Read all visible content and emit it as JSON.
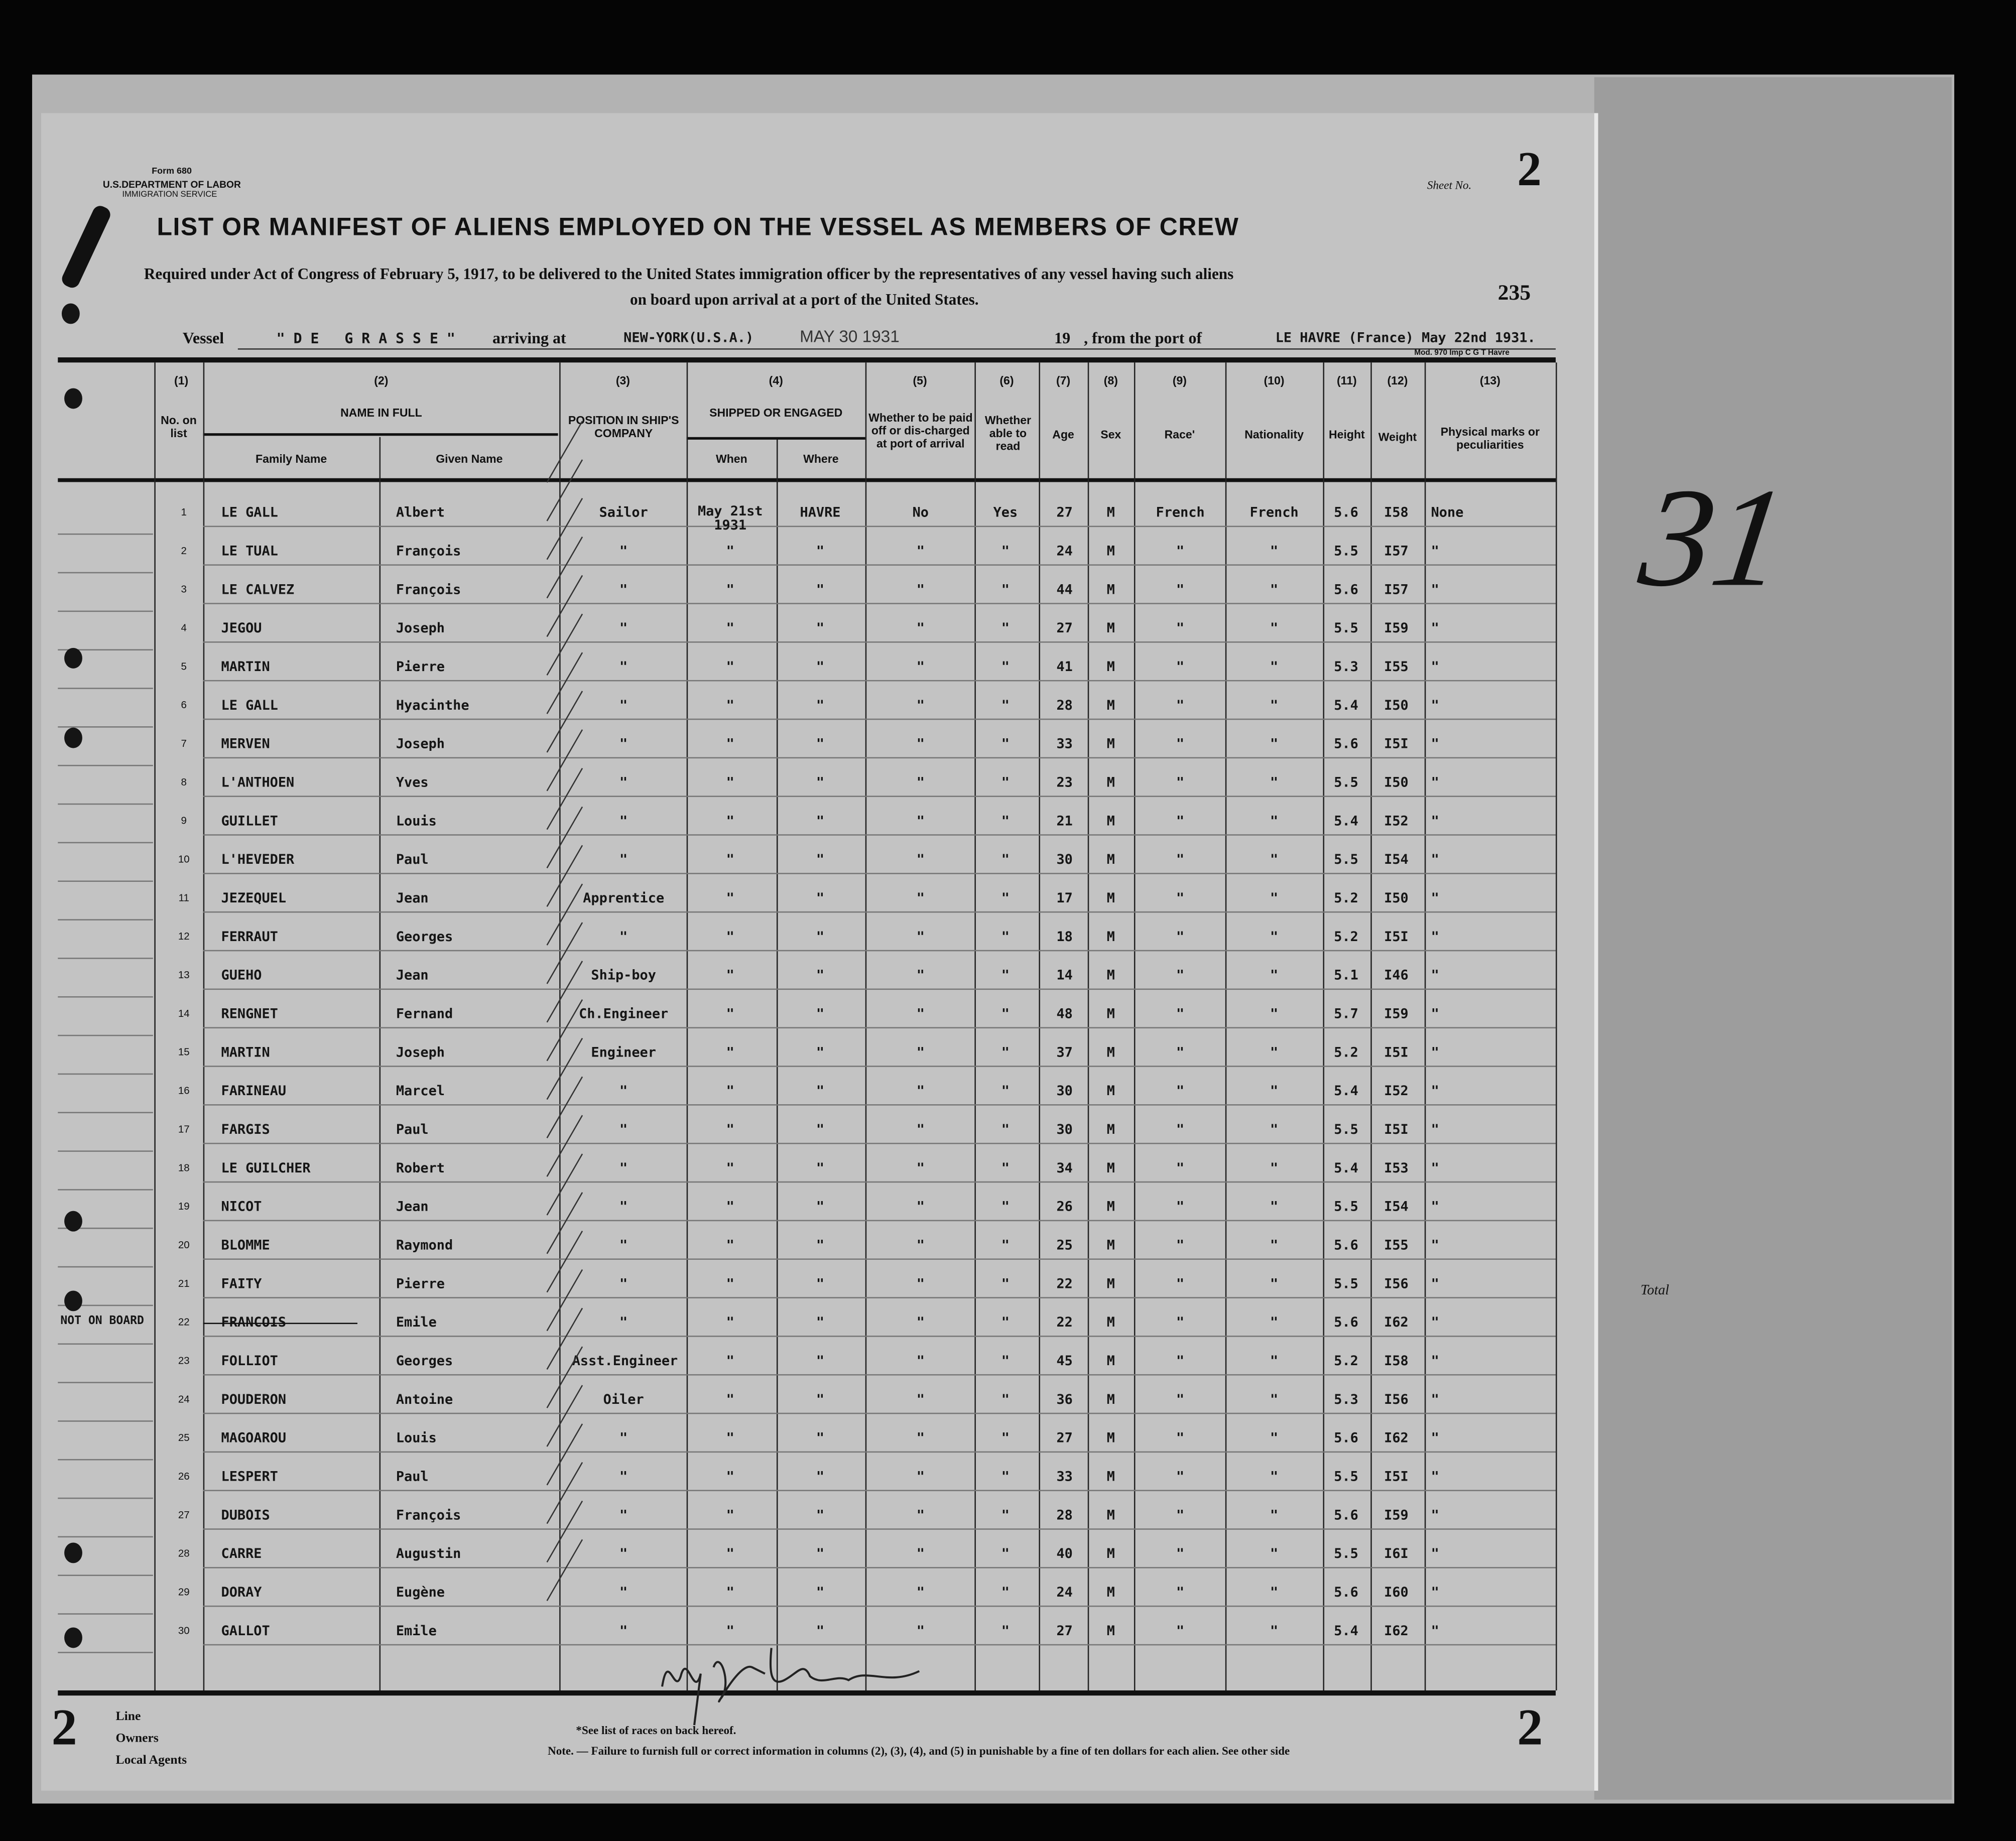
{
  "form": {
    "form_no": "Form 680",
    "department": "U.S.DEPARTMENT OF LABOR",
    "service": "IMMIGRATION SERVICE",
    "sheet_label": "Sheet No.",
    "sheet_no": "2",
    "page_number": "235",
    "mod": "Mod. 970 Imp C G T Havre"
  },
  "title": "LIST OR MANIFEST OF ALIENS EMPLOYED ON THE VESSEL AS MEMBERS OF CREW",
  "subtitle_1": "Required under Act of Congress of February 5, 1917, to be delivered to the United States immigration officer by the representatives of any vessel having such aliens",
  "subtitle_2": "on board upon arrival at a port of the United States.",
  "voyage": {
    "vessel_label": "Vessel",
    "vessel": "\" D E   G R A S S E \"",
    "arriving_label": "arriving at",
    "arriving": "NEW-YORK(U.S.A.)",
    "stamp_date": "MAY 30 1931",
    "year_label": "19",
    "from_label": ", from the port of",
    "from": "LE HAVRE (France) May 22nd 1931."
  },
  "headers": {
    "c1": "(1)",
    "c2": "(2)",
    "c3": "(3)",
    "c4": "(4)",
    "c5": "(5)",
    "c6": "(6)",
    "c7": "(7)",
    "c8": "(8)",
    "c9": "(9)",
    "c10": "(10)",
    "c11": "(11)",
    "c12": "(12)",
    "c13": "(13)",
    "no": "No. on list",
    "name_full": "NAME IN FULL",
    "family": "Family Name",
    "given": "Given Name",
    "position": "POSITION IN SHIP'S COMPANY",
    "shipped": "SHIPPED OR ENGAGED",
    "when": "When",
    "where": "Where",
    "paid": "Whether to be paid off or dis-charged at port of arrival",
    "read": "Whether able to read",
    "age": "Age",
    "sex": "Sex",
    "race": "Race'",
    "nationality": "Nationality",
    "height": "Height",
    "weight": "Weight",
    "marks": "Physical marks or peculiarities"
  },
  "rows": [
    {
      "no": "1",
      "family": "LE GALL",
      "given": "Albert",
      "position": "Sailor",
      "when": "May 21st 1931",
      "where": "HAVRE",
      "paid": "No",
      "read": "Yes",
      "age": "27",
      "sex": "M",
      "race": "French",
      "nationality": "French",
      "height": "5.6",
      "weight": "I58",
      "marks": "None"
    },
    {
      "no": "2",
      "family": "LE TUAL",
      "given": "François",
      "position": "\"",
      "when": "\"",
      "where": "\"",
      "paid": "\"",
      "read": "\"",
      "age": "24",
      "sex": "M",
      "race": "\"",
      "nationality": "\"",
      "height": "5.5",
      "weight": "I57",
      "marks": "\""
    },
    {
      "no": "3",
      "family": "LE CALVEZ",
      "given": "François",
      "position": "\"",
      "when": "\"",
      "where": "\"",
      "paid": "\"",
      "read": "\"",
      "age": "44",
      "sex": "M",
      "race": "\"",
      "nationality": "\"",
      "height": "5.6",
      "weight": "I57",
      "marks": "\""
    },
    {
      "no": "4",
      "family": "JEGOU",
      "given": "Joseph",
      "position": "\"",
      "when": "\"",
      "where": "\"",
      "paid": "\"",
      "read": "\"",
      "age": "27",
      "sex": "M",
      "race": "\"",
      "nationality": "\"",
      "height": "5.5",
      "weight": "I59",
      "marks": "\""
    },
    {
      "no": "5",
      "family": "MARTIN",
      "given": "Pierre",
      "position": "\"",
      "when": "\"",
      "where": "\"",
      "paid": "\"",
      "read": "\"",
      "age": "41",
      "sex": "M",
      "race": "\"",
      "nationality": "\"",
      "height": "5.3",
      "weight": "I55",
      "marks": "\""
    },
    {
      "no": "6",
      "family": "LE GALL",
      "given": "Hyacinthe",
      "position": "\"",
      "when": "\"",
      "where": "\"",
      "paid": "\"",
      "read": "\"",
      "age": "28",
      "sex": "M",
      "race": "\"",
      "nationality": "\"",
      "height": "5.4",
      "weight": "I50",
      "marks": "\""
    },
    {
      "no": "7",
      "family": "MERVEN",
      "given": "Joseph",
      "position": "\"",
      "when": "\"",
      "where": "\"",
      "paid": "\"",
      "read": "\"",
      "age": "33",
      "sex": "M",
      "race": "\"",
      "nationality": "\"",
      "height": "5.6",
      "weight": "I5I",
      "marks": "\""
    },
    {
      "no": "8",
      "family": "L'ANTHOEN",
      "given": "Yves",
      "position": "\"",
      "when": "\"",
      "where": "\"",
      "paid": "\"",
      "read": "\"",
      "age": "23",
      "sex": "M",
      "race": "\"",
      "nationality": "\"",
      "height": "5.5",
      "weight": "I50",
      "marks": "\""
    },
    {
      "no": "9",
      "family": "GUILLET",
      "given": "Louis",
      "position": "\"",
      "when": "\"",
      "where": "\"",
      "paid": "\"",
      "read": "\"",
      "age": "21",
      "sex": "M",
      "race": "\"",
      "nationality": "\"",
      "height": "5.4",
      "weight": "I52",
      "marks": "\""
    },
    {
      "no": "10",
      "family": "L'HEVEDER",
      "given": "Paul",
      "position": "\"",
      "when": "\"",
      "where": "\"",
      "paid": "\"",
      "read": "\"",
      "age": "30",
      "sex": "M",
      "race": "\"",
      "nationality": "\"",
      "height": "5.5",
      "weight": "I54",
      "marks": "\""
    },
    {
      "no": "11",
      "family": "JEZEQUEL",
      "given": "Jean",
      "position": "Apprentice",
      "when": "\"",
      "where": "\"",
      "paid": "\"",
      "read": "\"",
      "age": "17",
      "sex": "M",
      "race": "\"",
      "nationality": "\"",
      "height": "5.2",
      "weight": "I50",
      "marks": "\""
    },
    {
      "no": "12",
      "family": "FERRAUT",
      "given": "Georges",
      "position": "\"",
      "when": "\"",
      "where": "\"",
      "paid": "\"",
      "read": "\"",
      "age": "18",
      "sex": "M",
      "race": "\"",
      "nationality": "\"",
      "height": "5.2",
      "weight": "I5I",
      "marks": "\""
    },
    {
      "no": "13",
      "family": "GUEHO",
      "given": "Jean",
      "position": "Ship-boy",
      "when": "\"",
      "where": "\"",
      "paid": "\"",
      "read": "\"",
      "age": "14",
      "sex": "M",
      "race": "\"",
      "nationality": "\"",
      "height": "5.1",
      "weight": "I46",
      "marks": "\""
    },
    {
      "no": "14",
      "family": "RENGNET",
      "given": "Fernand",
      "position": "Ch.Engineer",
      "when": "\"",
      "where": "\"",
      "paid": "\"",
      "read": "\"",
      "age": "48",
      "sex": "M",
      "race": "\"",
      "nationality": "\"",
      "height": "5.7",
      "weight": "I59",
      "marks": "\""
    },
    {
      "no": "15",
      "family": "MARTIN",
      "given": "Joseph",
      "position": "Engineer",
      "when": "\"",
      "where": "\"",
      "paid": "\"",
      "read": "\"",
      "age": "37",
      "sex": "M",
      "race": "\"",
      "nationality": "\"",
      "height": "5.2",
      "weight": "I5I",
      "marks": "\""
    },
    {
      "no": "16",
      "family": "FARINEAU",
      "given": "Marcel",
      "position": "\"",
      "when": "\"",
      "where": "\"",
      "paid": "\"",
      "read": "\"",
      "age": "30",
      "sex": "M",
      "race": "\"",
      "nationality": "\"",
      "height": "5.4",
      "weight": "I52",
      "marks": "\""
    },
    {
      "no": "17",
      "family": "FARGIS",
      "given": "Paul",
      "position": "\"",
      "when": "\"",
      "where": "\"",
      "paid": "\"",
      "read": "\"",
      "age": "30",
      "sex": "M",
      "race": "\"",
      "nationality": "\"",
      "height": "5.5",
      "weight": "I5I",
      "marks": "\""
    },
    {
      "no": "18",
      "family": "LE GUILCHER",
      "given": "Robert",
      "position": "\"",
      "when": "\"",
      "where": "\"",
      "paid": "\"",
      "read": "\"",
      "age": "34",
      "sex": "M",
      "race": "\"",
      "nationality": "\"",
      "height": "5.4",
      "weight": "I53",
      "marks": "\""
    },
    {
      "no": "19",
      "family": "NICOT",
      "given": "Jean",
      "position": "\"",
      "when": "\"",
      "where": "\"",
      "paid": "\"",
      "read": "\"",
      "age": "26",
      "sex": "M",
      "race": "\"",
      "nationality": "\"",
      "height": "5.5",
      "weight": "I54",
      "marks": "\""
    },
    {
      "no": "20",
      "family": "BLOMME",
      "given": "Raymond",
      "position": "\"",
      "when": "\"",
      "where": "\"",
      "paid": "\"",
      "read": "\"",
      "age": "25",
      "sex": "M",
      "race": "\"",
      "nationality": "\"",
      "height": "5.6",
      "weight": "I55",
      "marks": "\""
    },
    {
      "no": "21",
      "family": "FAITY",
      "given": "Pierre",
      "position": "\"",
      "when": "\"",
      "where": "\"",
      "paid": "\"",
      "read": "\"",
      "age": "22",
      "sex": "M",
      "race": "\"",
      "nationality": "\"",
      "height": "5.5",
      "weight": "I56",
      "marks": "\""
    },
    {
      "no": "22",
      "family": "FRANCOIS",
      "given": "Emile",
      "position": "\"",
      "when": "\"",
      "where": "\"",
      "paid": "\"",
      "read": "\"",
      "age": "22",
      "sex": "M",
      "race": "\"",
      "nationality": "\"",
      "height": "5.6",
      "weight": "I62",
      "marks": "\"",
      "note": "NOT ON BOARD",
      "struck": true
    },
    {
      "no": "23",
      "family": "FOLLIOT",
      "given": "Georges",
      "position": "Asst.Engineer",
      "when": "\"",
      "where": "\"",
      "paid": "\"",
      "read": "\"",
      "age": "45",
      "sex": "M",
      "race": "\"",
      "nationality": "\"",
      "height": "5.2",
      "weight": "I58",
      "marks": "\""
    },
    {
      "no": "24",
      "family": "POUDERON",
      "given": "Antoine",
      "position": "Oiler",
      "when": "\"",
      "where": "\"",
      "paid": "\"",
      "read": "\"",
      "age": "36",
      "sex": "M",
      "race": "\"",
      "nationality": "\"",
      "height": "5.3",
      "weight": "I56",
      "marks": "\""
    },
    {
      "no": "25",
      "family": "MAGOAROU",
      "given": "Louis",
      "position": "\"",
      "when": "\"",
      "where": "\"",
      "paid": "\"",
      "read": "\"",
      "age": "27",
      "sex": "M",
      "race": "\"",
      "nationality": "\"",
      "height": "5.6",
      "weight": "I62",
      "marks": "\""
    },
    {
      "no": "26",
      "family": "LESPERT",
      "given": "Paul",
      "position": "\"",
      "when": "\"",
      "where": "\"",
      "paid": "\"",
      "read": "\"",
      "age": "33",
      "sex": "M",
      "race": "\"",
      "nationality": "\"",
      "height": "5.5",
      "weight": "I5I",
      "marks": "\""
    },
    {
      "no": "27",
      "family": "DUBOIS",
      "given": "François",
      "position": "\"",
      "when": "\"",
      "where": "\"",
      "paid": "\"",
      "read": "\"",
      "age": "28",
      "sex": "M",
      "race": "\"",
      "nationality": "\"",
      "height": "5.6",
      "weight": "I59",
      "marks": "\""
    },
    {
      "no": "28",
      "family": "CARRE",
      "given": "Augustin",
      "position": "\"",
      "when": "\"",
      "where": "\"",
      "paid": "\"",
      "read": "\"",
      "age": "40",
      "sex": "M",
      "race": "\"",
      "nationality": "\"",
      "height": "5.5",
      "weight": "I6I",
      "marks": "\""
    },
    {
      "no": "29",
      "family": "DORAY",
      "given": "Eugène",
      "position": "\"",
      "when": "\"",
      "where": "\"",
      "paid": "\"",
      "read": "\"",
      "age": "24",
      "sex": "M",
      "race": "\"",
      "nationality": "\"",
      "height": "5.6",
      "weight": "I60",
      "marks": "\""
    },
    {
      "no": "30",
      "family": "GALLOT",
      "given": "Emile",
      "position": "\"",
      "when": "\"",
      "where": "\"",
      "paid": "\"",
      "read": "\"",
      "age": "27",
      "sex": "M",
      "race": "\"",
      "nationality": "\"",
      "height": "5.4",
      "weight": "I62",
      "marks": "\""
    }
  ],
  "footer": {
    "line": "Line",
    "owners": "Owners",
    "local_agents": "Local Agents",
    "races_note": "*See list of races on back hereof.",
    "note": "Note. — Failure to furnish full or correct information in columns (2), (3), (4), and (5) in punishable by a fine of ten dollars for each alien. See other side",
    "page_mark": "2"
  },
  "annotations": {
    "back_number": "19",
    "handwritten_number": "31",
    "total_label": "Total"
  },
  "colors": {
    "paper": "#c3c3c3",
    "ink": "#111111",
    "background": "#050505"
  }
}
